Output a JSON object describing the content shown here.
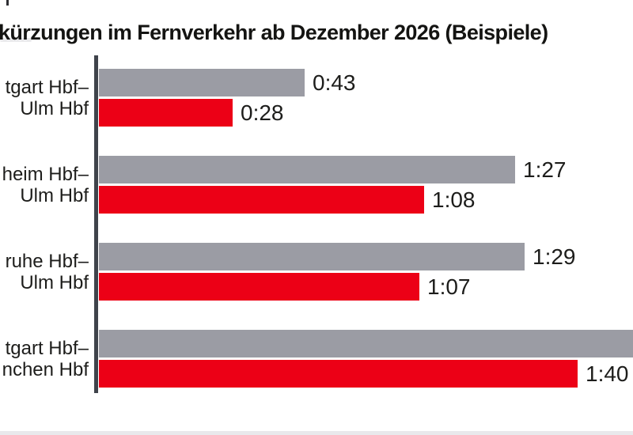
{
  "title": "kürzungen im Fernverkehr ab Dezember 2026 (Beispiele)",
  "colors": {
    "gray_bar": "#9b9ca4",
    "red_bar": "#ec0016",
    "axis": "#3f434b",
    "text": "#1d1d1b"
  },
  "chart_data": {
    "type": "bar",
    "orientation": "horizontal",
    "title": "kürzungen im Fernverkehr ab Dezember 2026 (Beispiele)",
    "unit": "h:mm (travel time)",
    "legend": "none visible",
    "axis_line": "vertical baseline at left, no tick labels",
    "categories": [
      "tgart Hbf– Ulm Hbf",
      "heim Hbf– Ulm Hbf",
      "ruhe Hbf– Ulm Hbf",
      "tgart Hbf– nchen Hbf"
    ],
    "series": [
      {
        "name": "gray",
        "color": "#9b9ca4",
        "labels": [
          "0:43",
          "1:27",
          "1:29",
          null
        ],
        "minutes": [
          43,
          87,
          89,
          null
        ],
        "clipped_at_right_edge": [
          false,
          false,
          false,
          true
        ]
      },
      {
        "name": "red",
        "color": "#ec0016",
        "labels": [
          "0:28",
          "1:08",
          "1:07",
          "1:40"
        ],
        "minutes": [
          28,
          68,
          67,
          100
        ],
        "clipped_at_right_edge": [
          false,
          false,
          false,
          false
        ]
      }
    ],
    "groups": [
      {
        "label_line1": "tgart Hbf–",
        "label_line2": "Ulm Hbf",
        "gray_label": "0:43",
        "red_label": "0:28"
      },
      {
        "label_line1": "heim Hbf–",
        "label_line2": "Ulm Hbf",
        "gray_label": "1:27",
        "red_label": "1:08"
      },
      {
        "label_line1": "ruhe Hbf–",
        "label_line2": "Ulm Hbf",
        "gray_label": "1:29",
        "red_label": "1:07"
      },
      {
        "label_line1": "tgart Hbf–",
        "label_line2": "nchen Hbf",
        "gray_label": "",
        "red_label": "1:40"
      }
    ]
  }
}
